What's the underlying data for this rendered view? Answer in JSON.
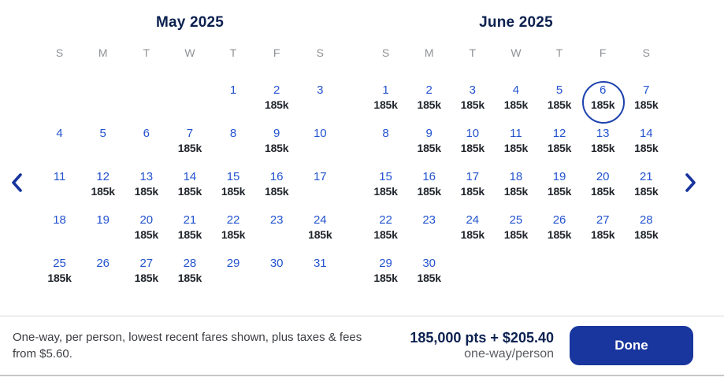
{
  "selected_date": "June 6, 2025",
  "colors": {
    "title_navy": "#0c2150",
    "date_blue": "#2353cf",
    "fare_dark": "#21252c",
    "day_header_gray": "#8f9195",
    "accent_blue": "#19369e",
    "selected_circle": "#1e43ae",
    "divider": "#d9d9d9"
  },
  "nav": {
    "prev_icon": "chevron-left",
    "next_icon": "chevron-right"
  },
  "calendars": [
    {
      "title": "May 2025",
      "day_headers": [
        "S",
        "M",
        "T",
        "W",
        "T",
        "F",
        "S"
      ],
      "weeks": [
        [
          {
            "day": "",
            "fare": ""
          },
          {
            "day": "",
            "fare": ""
          },
          {
            "day": "",
            "fare": ""
          },
          {
            "day": "",
            "fare": ""
          },
          {
            "day": "1",
            "fare": ""
          },
          {
            "day": "2",
            "fare": "185k"
          },
          {
            "day": "3",
            "fare": ""
          }
        ],
        [
          {
            "day": "4",
            "fare": ""
          },
          {
            "day": "5",
            "fare": ""
          },
          {
            "day": "6",
            "fare": ""
          },
          {
            "day": "7",
            "fare": "185k"
          },
          {
            "day": "8",
            "fare": ""
          },
          {
            "day": "9",
            "fare": "185k"
          },
          {
            "day": "10",
            "fare": ""
          }
        ],
        [
          {
            "day": "11",
            "fare": ""
          },
          {
            "day": "12",
            "fare": "185k"
          },
          {
            "day": "13",
            "fare": "185k"
          },
          {
            "day": "14",
            "fare": "185k"
          },
          {
            "day": "15",
            "fare": "185k"
          },
          {
            "day": "16",
            "fare": "185k"
          },
          {
            "day": "17",
            "fare": ""
          }
        ],
        [
          {
            "day": "18",
            "fare": ""
          },
          {
            "day": "19",
            "fare": ""
          },
          {
            "day": "20",
            "fare": "185k"
          },
          {
            "day": "21",
            "fare": "185k"
          },
          {
            "day": "22",
            "fare": "185k"
          },
          {
            "day": "23",
            "fare": ""
          },
          {
            "day": "24",
            "fare": "185k"
          }
        ],
        [
          {
            "day": "25",
            "fare": "185k"
          },
          {
            "day": "26",
            "fare": ""
          },
          {
            "day": "27",
            "fare": "185k"
          },
          {
            "day": "28",
            "fare": "185k"
          },
          {
            "day": "29",
            "fare": ""
          },
          {
            "day": "30",
            "fare": ""
          },
          {
            "day": "31",
            "fare": ""
          }
        ]
      ]
    },
    {
      "title": "June 2025",
      "day_headers": [
        "S",
        "M",
        "T",
        "W",
        "T",
        "F",
        "S"
      ],
      "weeks": [
        [
          {
            "day": "1",
            "fare": "185k"
          },
          {
            "day": "2",
            "fare": "185k"
          },
          {
            "day": "3",
            "fare": "185k"
          },
          {
            "day": "4",
            "fare": "185k"
          },
          {
            "day": "5",
            "fare": "185k"
          },
          {
            "day": "6",
            "fare": "185k",
            "selected": true
          },
          {
            "day": "7",
            "fare": "185k"
          }
        ],
        [
          {
            "day": "8",
            "fare": ""
          },
          {
            "day": "9",
            "fare": "185k"
          },
          {
            "day": "10",
            "fare": "185k"
          },
          {
            "day": "11",
            "fare": "185k"
          },
          {
            "day": "12",
            "fare": "185k"
          },
          {
            "day": "13",
            "fare": "185k"
          },
          {
            "day": "14",
            "fare": "185k"
          }
        ],
        [
          {
            "day": "15",
            "fare": "185k"
          },
          {
            "day": "16",
            "fare": "185k"
          },
          {
            "day": "17",
            "fare": "185k"
          },
          {
            "day": "18",
            "fare": "185k"
          },
          {
            "day": "19",
            "fare": "185k"
          },
          {
            "day": "20",
            "fare": "185k"
          },
          {
            "day": "21",
            "fare": "185k"
          }
        ],
        [
          {
            "day": "22",
            "fare": "185k"
          },
          {
            "day": "23",
            "fare": ""
          },
          {
            "day": "24",
            "fare": "185k"
          },
          {
            "day": "25",
            "fare": "185k"
          },
          {
            "day": "26",
            "fare": "185k"
          },
          {
            "day": "27",
            "fare": "185k"
          },
          {
            "day": "28",
            "fare": "185k"
          }
        ],
        [
          {
            "day": "29",
            "fare": "185k"
          },
          {
            "day": "30",
            "fare": "185k"
          },
          {
            "day": "",
            "fare": ""
          },
          {
            "day": "",
            "fare": ""
          },
          {
            "day": "",
            "fare": ""
          },
          {
            "day": "",
            "fare": ""
          },
          {
            "day": "",
            "fare": ""
          }
        ]
      ]
    }
  ],
  "footer": {
    "disclaimer": "One-way, per person, lowest recent fares shown, plus taxes & fees from $5.60.",
    "price": "185,000 pts + $205.40",
    "price_unit": "one-way/person",
    "done_label": "Done"
  }
}
